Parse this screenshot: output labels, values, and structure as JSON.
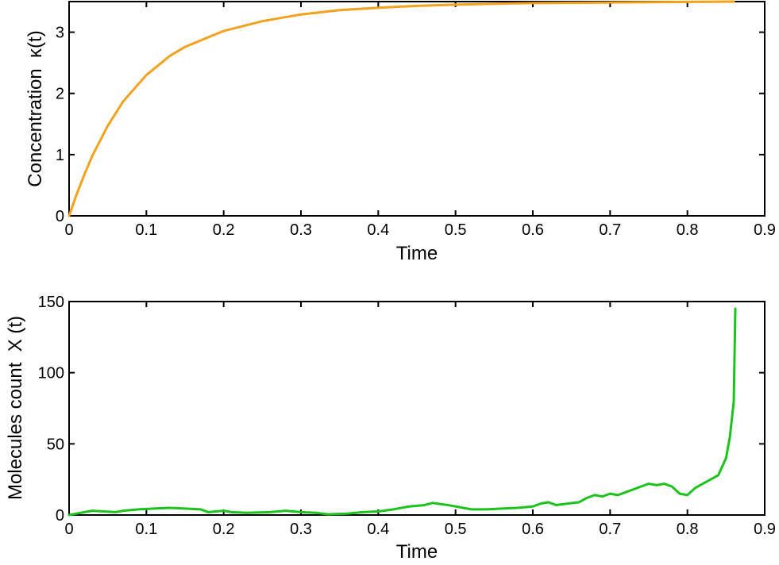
{
  "chart_data": [
    {
      "type": "line",
      "color": "#F4A11E",
      "xlabel": "Time",
      "ylabel": "Concentration  κ(t)",
      "xlim": [
        0,
        0.9
      ],
      "ylim": [
        0,
        3.5
      ],
      "x_ticks": [
        "0",
        "0.1",
        "0.2",
        "0.3",
        "0.4",
        "0.5",
        "0.6",
        "0.7",
        "0.8",
        "0.9"
      ],
      "y_ticks": [
        "0",
        "1",
        "2",
        "3"
      ],
      "x_tick_values": [
        0,
        0.1,
        0.2,
        0.3,
        0.4,
        0.5,
        0.6,
        0.7,
        0.8,
        0.9
      ],
      "y_tick_values": [
        0,
        1,
        2,
        3
      ],
      "grid": false,
      "series": [
        {
          "x": [
            0,
            0.01,
            0.02,
            0.03,
            0.05,
            0.07,
            0.1,
            0.13,
            0.15,
            0.2,
            0.25,
            0.3,
            0.35,
            0.4,
            0.45,
            0.5,
            0.55,
            0.6,
            0.65,
            0.7,
            0.75,
            0.8,
            0.86
          ],
          "y": [
            0,
            0.36,
            0.68,
            0.98,
            1.47,
            1.87,
            2.3,
            2.61,
            2.76,
            3.02,
            3.18,
            3.29,
            3.36,
            3.4,
            3.43,
            3.45,
            3.465,
            3.475,
            3.48,
            3.485,
            3.49,
            3.495,
            3.5
          ]
        }
      ]
    },
    {
      "type": "line",
      "color": "#1DC31D",
      "xlabel": "Time",
      "ylabel": "Molecules count  X (t)",
      "xlim": [
        0,
        0.9
      ],
      "ylim": [
        0,
        150
      ],
      "x_ticks": [
        "0",
        "0.1",
        "0.2",
        "0.3",
        "0.4",
        "0.5",
        "0.6",
        "0.7",
        "0.8",
        "0.9"
      ],
      "y_ticks": [
        "0",
        "50",
        "100",
        "150"
      ],
      "x_tick_values": [
        0,
        0.1,
        0.2,
        0.3,
        0.4,
        0.5,
        0.6,
        0.7,
        0.8,
        0.9
      ],
      "y_tick_values": [
        0,
        50,
        100,
        150
      ],
      "grid": false,
      "series": [
        {
          "x": [
            0,
            0.01,
            0.02,
            0.03,
            0.045,
            0.06,
            0.07,
            0.09,
            0.11,
            0.13,
            0.15,
            0.17,
            0.18,
            0.2,
            0.21,
            0.23,
            0.26,
            0.28,
            0.3,
            0.32,
            0.335,
            0.36,
            0.38,
            0.4,
            0.42,
            0.44,
            0.46,
            0.47,
            0.49,
            0.51,
            0.52,
            0.54,
            0.56,
            0.58,
            0.6,
            0.61,
            0.62,
            0.63,
            0.645,
            0.66,
            0.67,
            0.68,
            0.69,
            0.7,
            0.71,
            0.72,
            0.73,
            0.74,
            0.75,
            0.76,
            0.77,
            0.78,
            0.79,
            0.8,
            0.81,
            0.82,
            0.83,
            0.84,
            0.85,
            0.855,
            0.86,
            0.862
          ],
          "y": [
            0,
            1,
            2,
            3,
            2.5,
            2,
            3,
            4,
            4.5,
            5,
            4.5,
            4,
            2,
            3,
            2,
            1.5,
            2,
            3,
            2,
            1.5,
            0.5,
            1,
            2,
            2.5,
            4,
            6,
            7,
            8.5,
            7,
            5,
            4,
            4,
            4.5,
            5,
            6,
            8,
            9,
            7,
            8,
            9,
            12,
            14,
            13,
            15,
            14,
            16,
            18,
            20,
            22,
            21,
            22,
            20,
            15,
            14,
            19,
            22,
            25,
            28,
            40,
            55,
            80,
            145
          ]
        }
      ]
    }
  ]
}
